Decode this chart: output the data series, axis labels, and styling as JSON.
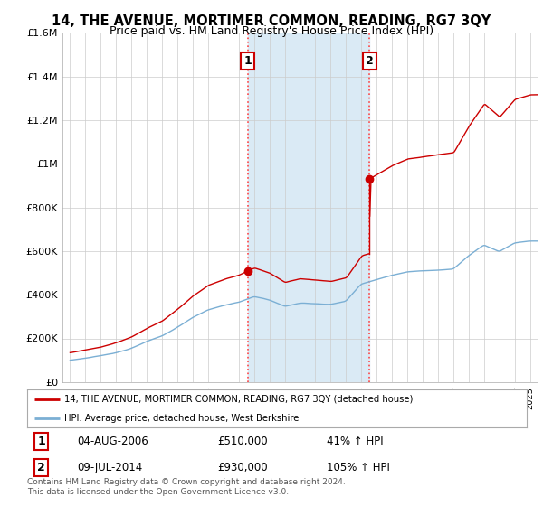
{
  "title": "14, THE AVENUE, MORTIMER COMMON, READING, RG7 3QY",
  "subtitle": "Price paid vs. HM Land Registry's House Price Index (HPI)",
  "legend_line1": "14, THE AVENUE, MORTIMER COMMON, READING, RG7 3QY (detached house)",
  "legend_line2": "HPI: Average price, detached house, West Berkshire",
  "footnote": "Contains HM Land Registry data © Crown copyright and database right 2024.\nThis data is licensed under the Open Government Licence v3.0.",
  "annotation1_date": "04-AUG-2006",
  "annotation1_price": "£510,000",
  "annotation1_hpi": "41% ↑ HPI",
  "annotation2_date": "09-JUL-2014",
  "annotation2_price": "£930,000",
  "annotation2_hpi": "105% ↑ HPI",
  "sale1_x": 2006.58,
  "sale1_y": 510000,
  "sale2_x": 2014.52,
  "sale2_y": 930000,
  "vline1_x": 2006.58,
  "vline2_x": 2014.52,
  "red_line_color": "#cc0000",
  "blue_line_color": "#7bafd4",
  "shaded_color": "#daeaf5",
  "grid_color": "#cccccc",
  "background_color": "#ffffff",
  "ylim": [
    0,
    1600000
  ],
  "xlim": [
    1994.5,
    2025.5
  ],
  "title_fontsize": 10.5,
  "subtitle_fontsize": 9
}
